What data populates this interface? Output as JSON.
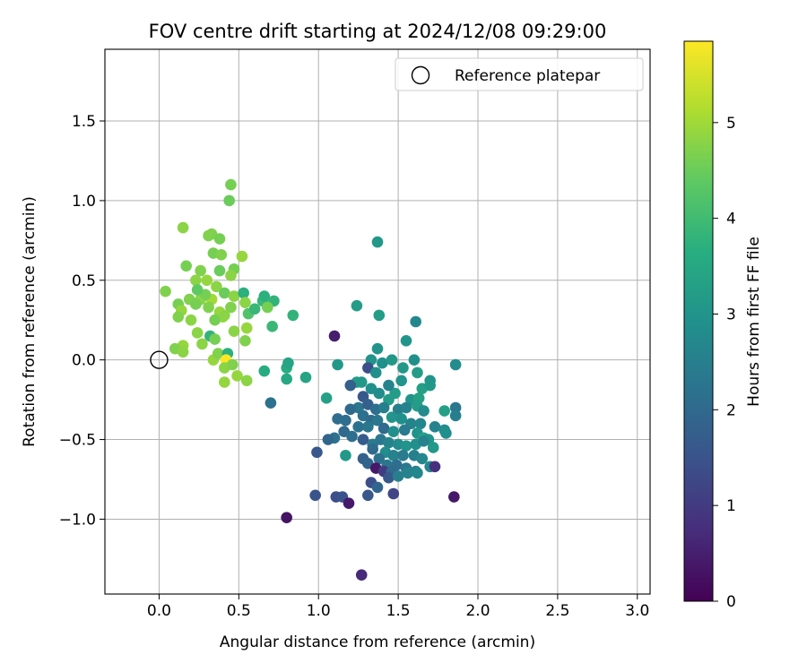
{
  "chart_data": {
    "type": "scatter",
    "title": "FOV centre drift starting at 2024/12/08 09:29:00",
    "xlabel": "Angular distance from reference (arcmin)",
    "ylabel": "Rotation from reference (arcmin)",
    "xlim": [
      -0.34,
      3.08
    ],
    "ylim": [
      -1.47,
      1.95
    ],
    "x_ticks": [
      0.0,
      0.5,
      1.0,
      1.5,
      2.0,
      2.5,
      3.0
    ],
    "x_tick_labels": [
      "0.0",
      "0.5",
      "1.0",
      "1.5",
      "2.0",
      "2.5",
      "3.0"
    ],
    "y_ticks": [
      -1.0,
      -0.5,
      0.0,
      0.5,
      1.0,
      1.5
    ],
    "y_tick_labels": [
      "−1.0",
      "−0.5",
      "0.0",
      "0.5",
      "1.0",
      "1.5"
    ],
    "grid": true,
    "legend": {
      "position": "top-right",
      "label": "Reference platepar"
    },
    "reference": {
      "x": 0.0,
      "y": 0.0
    },
    "colorbar": {
      "label": "Hours from first FF file",
      "range": [
        0,
        5.85
      ],
      "ticks": [
        0,
        1,
        2,
        3,
        4,
        5
      ],
      "tick_labels": [
        "0",
        "1",
        "2",
        "3",
        "4",
        "5"
      ],
      "colormap": "viridis"
    },
    "points": [
      [
        0.45,
        1.1,
        4.6
      ],
      [
        0.44,
        1.0,
        4.5
      ],
      [
        0.15,
        0.83,
        4.8
      ],
      [
        0.31,
        0.78,
        4.7
      ],
      [
        0.33,
        0.79,
        4.7
      ],
      [
        0.38,
        0.76,
        4.6
      ],
      [
        0.34,
        0.67,
        4.6
      ],
      [
        0.39,
        0.66,
        4.7
      ],
      [
        0.17,
        0.59,
        4.6
      ],
      [
        0.52,
        0.65,
        4.9
      ],
      [
        0.47,
        0.57,
        4.6
      ],
      [
        0.38,
        0.56,
        4.5
      ],
      [
        0.45,
        0.53,
        4.8
      ],
      [
        0.26,
        0.56,
        4.7
      ],
      [
        0.23,
        0.5,
        4.8
      ],
      [
        0.3,
        0.5,
        4.9
      ],
      [
        0.36,
        0.46,
        4.8
      ],
      [
        0.04,
        0.43,
        4.7
      ],
      [
        0.12,
        0.35,
        4.6
      ],
      [
        0.19,
        0.38,
        4.7
      ],
      [
        0.26,
        0.38,
        4.8
      ],
      [
        0.33,
        0.38,
        5.0
      ],
      [
        0.29,
        0.41,
        4.6
      ],
      [
        0.24,
        0.44,
        4.4
      ],
      [
        0.41,
        0.42,
        4.5
      ],
      [
        0.47,
        0.4,
        4.8
      ],
      [
        0.53,
        0.42,
        3.7
      ],
      [
        0.54,
        0.36,
        4.8
      ],
      [
        0.56,
        0.29,
        4.2
      ],
      [
        0.14,
        0.31,
        4.9
      ],
      [
        0.2,
        0.25,
        4.8
      ],
      [
        0.12,
        0.27,
        4.7
      ],
      [
        0.23,
        0.35,
        4.6
      ],
      [
        0.31,
        0.33,
        4.7
      ],
      [
        0.38,
        0.3,
        4.9
      ],
      [
        0.45,
        0.33,
        4.7
      ],
      [
        0.4,
        0.27,
        4.9
      ],
      [
        0.6,
        0.32,
        3.9
      ],
      [
        0.65,
        0.37,
        3.9
      ],
      [
        0.66,
        0.4,
        3.7
      ],
      [
        0.72,
        0.37,
        3.8
      ],
      [
        0.68,
        0.33,
        4.6
      ],
      [
        0.84,
        0.28,
        3.8
      ],
      [
        0.71,
        0.21,
        3.9
      ],
      [
        0.35,
        0.25,
        4.6
      ],
      [
        0.41,
        0.28,
        4.8
      ],
      [
        0.47,
        0.18,
        4.8
      ],
      [
        0.55,
        0.2,
        4.9
      ],
      [
        0.54,
        0.12,
        4.7
      ],
      [
        0.24,
        0.17,
        4.8
      ],
      [
        0.32,
        0.15,
        3.8
      ],
      [
        0.35,
        0.13,
        4.6
      ],
      [
        0.27,
        0.1,
        4.8
      ],
      [
        0.15,
        0.09,
        4.9
      ],
      [
        0.1,
        0.07,
        4.7
      ],
      [
        0.15,
        0.05,
        4.8
      ],
      [
        0.34,
        0.0,
        4.9
      ],
      [
        0.37,
        0.04,
        4.7
      ],
      [
        0.43,
        0.04,
        3.7
      ],
      [
        0.42,
        0.0,
        5.85
      ],
      [
        0.41,
        -0.05,
        4.8
      ],
      [
        0.46,
        -0.03,
        4.7
      ],
      [
        0.49,
        -0.1,
        4.9
      ],
      [
        0.41,
        -0.14,
        4.9
      ],
      [
        0.55,
        -0.13,
        4.8
      ],
      [
        0.66,
        -0.07,
        3.6
      ],
      [
        0.8,
        -0.05,
        3.6
      ],
      [
        0.8,
        -0.12,
        3.5
      ],
      [
        0.81,
        -0.02,
        3.4
      ],
      [
        0.92,
        -0.11,
        3.4
      ],
      [
        0.7,
        -0.27,
        2.2
      ],
      [
        1.1,
        0.15,
        0.5
      ],
      [
        1.24,
        0.34,
        3.2
      ],
      [
        1.37,
        0.74,
        3.1
      ],
      [
        1.38,
        0.28,
        3.2
      ],
      [
        1.61,
        0.24,
        2.7
      ],
      [
        1.55,
        0.12,
        3.0
      ],
      [
        1.37,
        0.07,
        3.0
      ],
      [
        1.33,
        0.0,
        3.0
      ],
      [
        1.12,
        -0.03,
        3.1
      ],
      [
        1.4,
        -0.02,
        2.9
      ],
      [
        1.46,
        0.0,
        3.1
      ],
      [
        1.53,
        -0.05,
        3.1
      ],
      [
        1.6,
        0.0,
        2.9
      ],
      [
        1.62,
        -0.08,
        3.2
      ],
      [
        1.7,
        -0.13,
        3.0
      ],
      [
        1.86,
        -0.03,
        2.8
      ],
      [
        1.31,
        -0.05,
        1.4
      ],
      [
        1.36,
        -0.08,
        2.9
      ],
      [
        1.24,
        -0.14,
        3.2
      ],
      [
        1.27,
        -0.14,
        3.1
      ],
      [
        1.2,
        -0.16,
        1.8
      ],
      [
        1.33,
        -0.18,
        2.9
      ],
      [
        1.05,
        -0.24,
        3.3
      ],
      [
        1.28,
        -0.23,
        1.6
      ],
      [
        1.38,
        -0.21,
        2.8
      ],
      [
        1.48,
        -0.21,
        3.2
      ],
      [
        1.44,
        -0.16,
        2.6
      ],
      [
        1.52,
        -0.13,
        3.0
      ],
      [
        1.65,
        -0.18,
        3.3
      ],
      [
        1.7,
        -0.16,
        3.1
      ],
      [
        1.44,
        -0.25,
        3.2
      ],
      [
        1.58,
        -0.25,
        3.0
      ],
      [
        1.63,
        -0.24,
        3.3
      ],
      [
        1.25,
        -0.3,
        2.3
      ],
      [
        1.31,
        -0.28,
        1.8
      ],
      [
        1.36,
        -0.31,
        2.1
      ],
      [
        1.41,
        -0.3,
        2.5
      ],
      [
        1.5,
        -0.31,
        2.5
      ],
      [
        1.55,
        -0.3,
        2.6
      ],
      [
        1.62,
        -0.29,
        3.2
      ],
      [
        1.66,
        -0.32,
        2.8
      ],
      [
        1.79,
        -0.32,
        3.3
      ],
      [
        1.86,
        -0.3,
        2.3
      ],
      [
        1.86,
        -0.35,
        2.5
      ],
      [
        1.2,
        -0.31,
        2.0
      ],
      [
        1.28,
        -0.35,
        2.2
      ],
      [
        1.12,
        -0.37,
        2.1
      ],
      [
        1.17,
        -0.38,
        2.1
      ],
      [
        1.33,
        -0.38,
        2.0
      ],
      [
        1.37,
        -0.38,
        2.3
      ],
      [
        1.46,
        -0.36,
        3.0
      ],
      [
        1.52,
        -0.37,
        2.9
      ],
      [
        1.58,
        -0.4,
        2.6
      ],
      [
        1.64,
        -0.4,
        2.7
      ],
      [
        1.73,
        -0.42,
        2.6
      ],
      [
        1.79,
        -0.44,
        2.8
      ],
      [
        1.8,
        -0.46,
        2.9
      ],
      [
        1.25,
        -0.42,
        2.2
      ],
      [
        1.31,
        -0.42,
        2.3
      ],
      [
        1.41,
        -0.43,
        2.0
      ],
      [
        1.47,
        -0.45,
        2.9
      ],
      [
        1.54,
        -0.44,
        2.4
      ],
      [
        1.62,
        -0.46,
        3.0
      ],
      [
        1.66,
        -0.49,
        3.3
      ],
      [
        1.69,
        -0.5,
        3.0
      ],
      [
        1.16,
        -0.45,
        2.0
      ],
      [
        1.21,
        -0.48,
        2.1
      ],
      [
        1.1,
        -0.49,
        2.2
      ],
      [
        1.06,
        -0.5,
        1.9
      ],
      [
        1.28,
        -0.5,
        1.7
      ],
      [
        1.34,
        -0.53,
        2.4
      ],
      [
        1.39,
        -0.5,
        2.3
      ],
      [
        1.44,
        -0.52,
        2.6
      ],
      [
        1.5,
        -0.53,
        2.8
      ],
      [
        1.55,
        -0.54,
        3.0
      ],
      [
        1.61,
        -0.53,
        2.9
      ],
      [
        1.66,
        -0.51,
        2.6
      ],
      [
        1.72,
        -0.55,
        3.1
      ],
      [
        0.99,
        -0.58,
        1.6
      ],
      [
        1.17,
        -0.6,
        3.1
      ],
      [
        1.34,
        -0.56,
        2.0
      ],
      [
        1.42,
        -0.58,
        2.8
      ],
      [
        1.47,
        -0.6,
        2.6
      ],
      [
        1.53,
        -0.6,
        2.4
      ],
      [
        1.6,
        -0.6,
        2.5
      ],
      [
        1.65,
        -0.62,
        2.7
      ],
      [
        1.28,
        -0.62,
        1.8
      ],
      [
        1.31,
        -0.65,
        1.9
      ],
      [
        1.38,
        -0.62,
        2.2
      ],
      [
        1.43,
        -0.66,
        2.3
      ],
      [
        1.49,
        -0.66,
        2.1
      ],
      [
        1.55,
        -0.68,
        2.3
      ],
      [
        1.61,
        -0.7,
        2.5
      ],
      [
        1.36,
        -0.68,
        0.4
      ],
      [
        1.41,
        -0.7,
        1.0
      ],
      [
        1.46,
        -0.7,
        2.0
      ],
      [
        1.7,
        -0.67,
        2.7
      ],
      [
        1.73,
        -0.67,
        0.8
      ],
      [
        1.44,
        -0.74,
        1.6
      ],
      [
        1.5,
        -0.73,
        2.5
      ],
      [
        1.56,
        -0.71,
        2.6
      ],
      [
        1.62,
        -0.71,
        2.7
      ],
      [
        1.33,
        -0.77,
        1.4
      ],
      [
        1.37,
        -0.8,
        1.9
      ],
      [
        1.47,
        -0.84,
        1.2
      ],
      [
        1.31,
        -0.85,
        1.6
      ],
      [
        1.11,
        -0.86,
        1.4
      ],
      [
        1.15,
        -0.86,
        1.5
      ],
      [
        0.98,
        -0.85,
        1.5
      ],
      [
        1.19,
        -0.9,
        0.4
      ],
      [
        1.85,
        -0.86,
        0.4
      ],
      [
        0.8,
        -0.99,
        0.3
      ],
      [
        1.27,
        -1.35,
        0.7
      ]
    ]
  }
}
